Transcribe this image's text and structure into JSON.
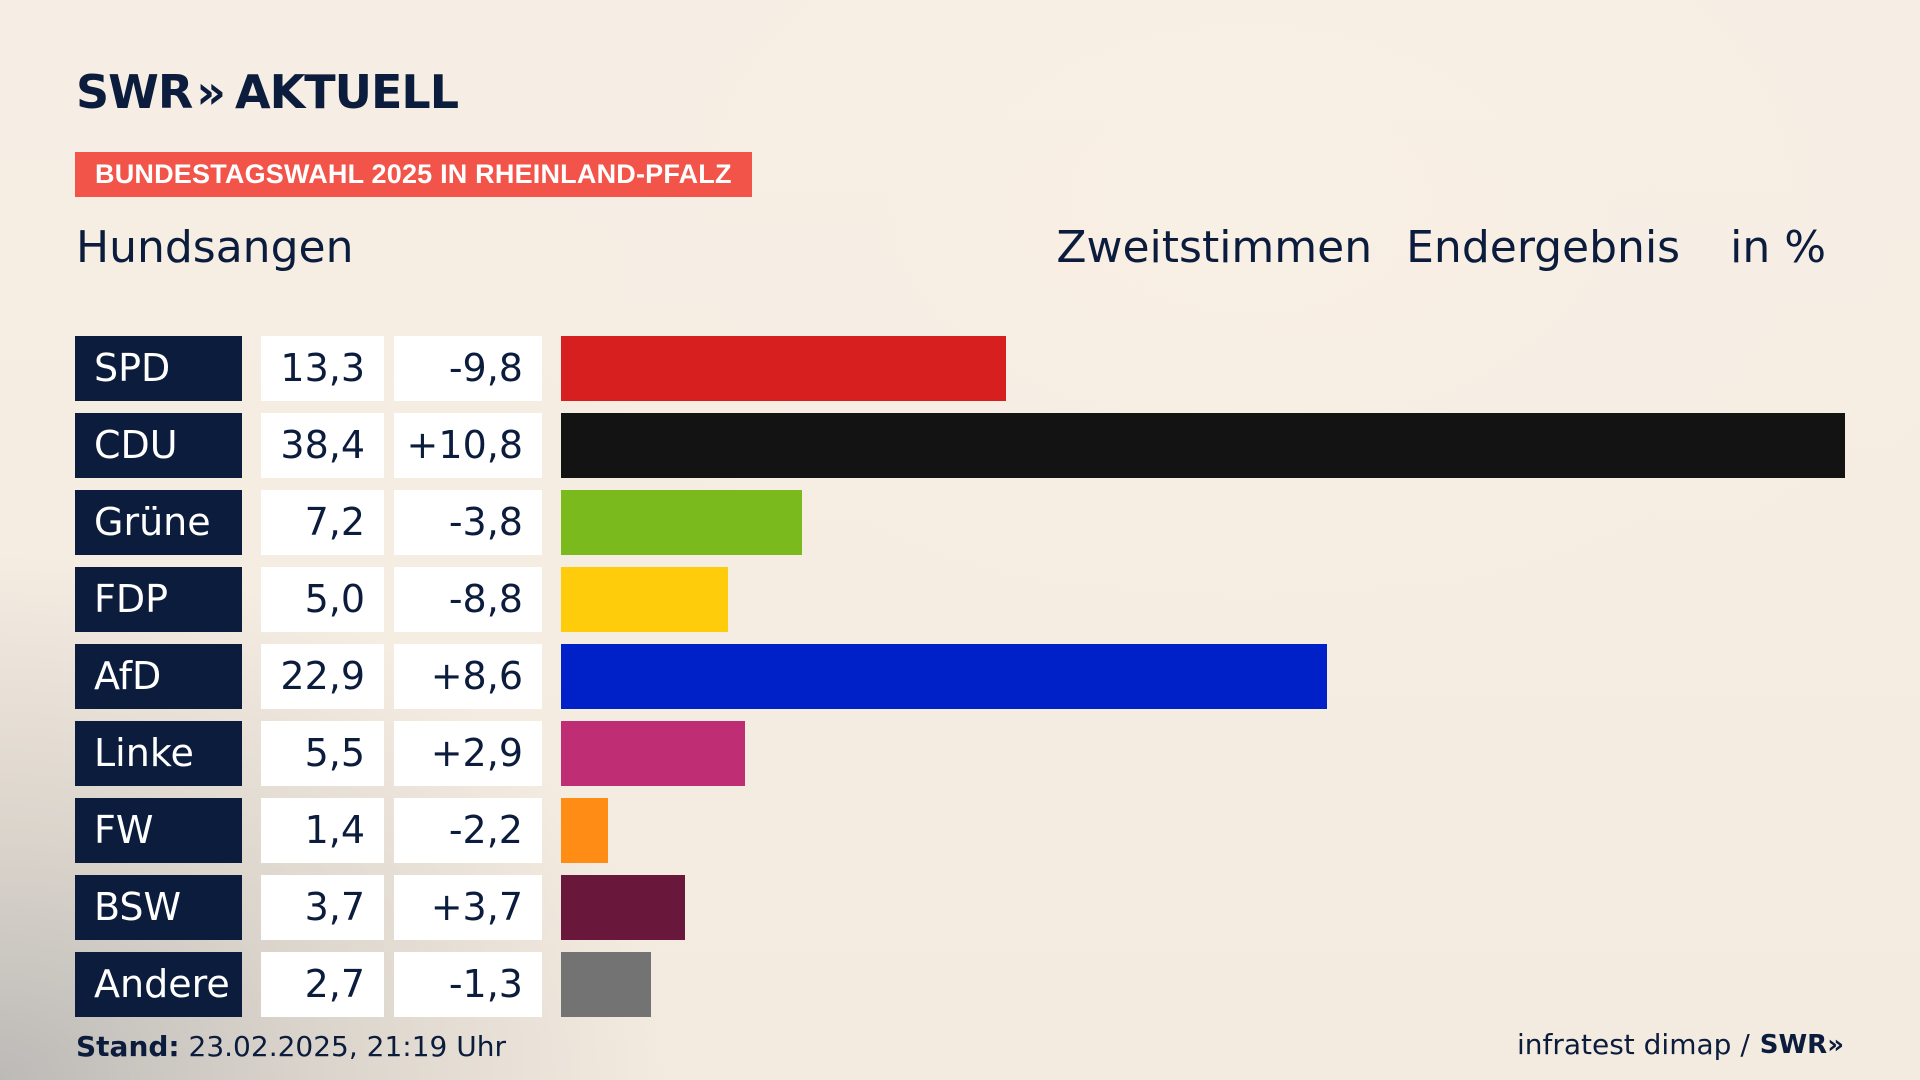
{
  "brand": {
    "logo_text": "SWR",
    "logo_chevrons": "»",
    "logo_suffix": "AKTUELL",
    "color_navy": "#0b1c3d",
    "color_badge": "#f2544a"
  },
  "header": {
    "badge": "BUNDESTAGSWAHL 2025 IN RHEINLAND-PFALZ",
    "region": "Hundsangen",
    "vote_type": "Zweitstimmen",
    "result_type": "Endergebnis",
    "unit": "in %"
  },
  "chart_data": {
    "type": "bar",
    "title": "Bundestagswahl 2025 in Rheinland-Pfalz – Hundsangen",
    "subtitle": "Zweitstimmen Endergebnis",
    "ylabel": "in %",
    "xlim": [
      0,
      38.4
    ],
    "categories": [
      "SPD",
      "CDU",
      "Grüne",
      "FDP",
      "AfD",
      "Linke",
      "FW",
      "BSW",
      "Andere"
    ],
    "values": [
      13.3,
      38.4,
      7.2,
      5.0,
      22.9,
      5.5,
      1.4,
      3.7,
      2.7
    ],
    "value_labels": [
      "13,3",
      "38,4",
      "7,2",
      "5,0",
      "22,9",
      "5,5",
      "1,4",
      "3,7",
      "2,7"
    ],
    "diff_labels": [
      "-9,8",
      "+10,8",
      "-3,8",
      "-8,8",
      "+8,6",
      "+2,9",
      "-2,2",
      "+3,7",
      "-1,3"
    ],
    "colors": [
      "#d81f1f",
      "#131313",
      "#7aba1c",
      "#fecc0a",
      "#0021c8",
      "#bf2e75",
      "#ff8c14",
      "#69183c",
      "#737373"
    ]
  },
  "footer": {
    "stand_label": "Stand:",
    "stand_value": "23.02.2025, 21:19 Uhr",
    "source": "infratest dimap /",
    "source_logo": "SWR»"
  }
}
